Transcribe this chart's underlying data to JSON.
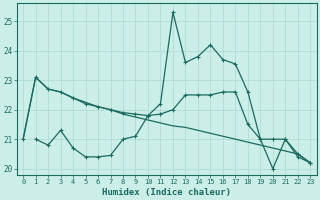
{
  "xlabel": "Humidex (Indice chaleur)",
  "background_color": "#cceee8",
  "line_color": "#1a6b5e",
  "grid_color": "#aad8d0",
  "xlim": [
    -0.5,
    23.5
  ],
  "ylim": [
    19.8,
    25.6
  ],
  "yticks": [
    20,
    21,
    22,
    23,
    24,
    25
  ],
  "xticks": [
    0,
    1,
    2,
    3,
    4,
    5,
    6,
    7,
    8,
    9,
    10,
    11,
    12,
    13,
    14,
    15,
    16,
    17,
    18,
    19,
    20,
    21,
    22,
    23
  ],
  "series_upper": {
    "x": [
      0,
      1,
      2,
      3,
      4,
      5,
      6,
      7,
      8,
      9,
      10,
      11,
      12,
      13,
      14,
      15,
      16,
      17,
      18,
      19,
      20,
      21,
      22,
      23
    ],
    "y": [
      21.0,
      23.1,
      22.7,
      22.6,
      22.4,
      22.2,
      22.1,
      22.0,
      21.9,
      21.85,
      21.8,
      22.2,
      25.3,
      23.6,
      23.8,
      24.2,
      23.7,
      23.55,
      22.6,
      21.0,
      21.0,
      21.0,
      20.5,
      20.2
    ]
  },
  "series_middle": {
    "x": [
      0,
      1,
      2,
      3,
      4,
      5,
      6,
      7,
      8,
      9,
      10,
      11,
      12,
      13,
      14,
      15,
      16,
      17,
      18,
      19,
      20,
      21,
      22,
      23
    ],
    "y": [
      21.0,
      23.1,
      22.7,
      22.6,
      22.4,
      22.25,
      22.1,
      22.0,
      21.85,
      21.75,
      21.65,
      21.55,
      21.45,
      21.4,
      21.3,
      21.2,
      21.1,
      21.0,
      20.9,
      20.8,
      20.7,
      20.6,
      20.5,
      20.2
    ]
  },
  "series_lower": {
    "x": [
      1,
      2,
      3,
      4,
      5,
      6,
      7,
      8,
      9,
      10,
      11,
      12,
      13,
      14,
      15,
      16,
      17,
      18,
      19,
      20,
      21,
      22,
      23
    ],
    "y": [
      21.0,
      20.8,
      21.3,
      20.7,
      20.4,
      20.4,
      20.45,
      21.0,
      21.1,
      21.8,
      21.85,
      22.0,
      22.5,
      22.5,
      22.5,
      22.6,
      22.6,
      21.5,
      21.0,
      20.0,
      21.0,
      20.4,
      20.2
    ]
  }
}
